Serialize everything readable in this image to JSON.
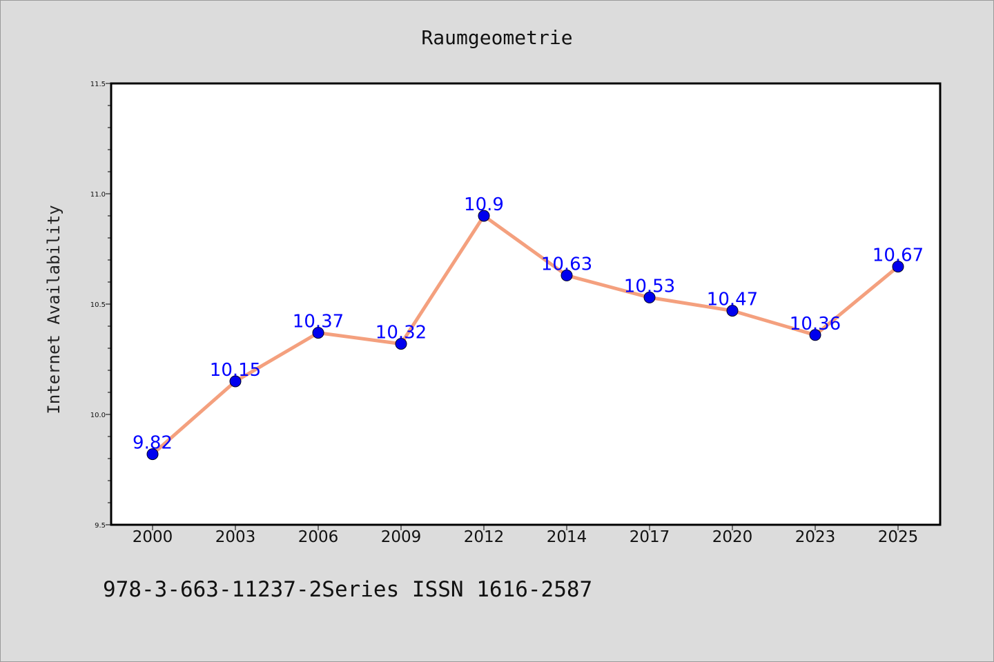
{
  "chart_data": {
    "type": "line",
    "title": "Raumgeometrie",
    "xlabel": "",
    "ylabel": "Internet Availability",
    "categories": [
      "2000",
      "2003",
      "2006",
      "2009",
      "2012",
      "2014",
      "2017",
      "2020",
      "2023",
      "2025"
    ],
    "series": [
      {
        "values": [
          9.82,
          10.15,
          10.37,
          10.32,
          10.9,
          10.63,
          10.53,
          10.47,
          10.36,
          10.67
        ],
        "data_labels": [
          "9.82",
          "10.15",
          "10.37",
          "10.32",
          "10.9",
          "10.63",
          "10.53",
          "10.47",
          "10.36",
          "10.67"
        ],
        "line_color": "#f4a07e",
        "marker_color": "#0000ee",
        "label_color": "#0000ff"
      }
    ],
    "ylim": [
      9.5,
      11.5
    ],
    "yticks": [
      {
        "value": 9.5,
        "label": "9.5"
      },
      {
        "value": 10.0,
        "label": "10.0"
      },
      {
        "value": 10.5,
        "label": "10.5"
      },
      {
        "value": 11.0,
        "label": "11.0"
      },
      {
        "value": 11.5,
        "label": "11.5"
      }
    ],
    "y_minor_step": 0.1,
    "grid": false,
    "legend": "none",
    "background_color": "#dcdcdc",
    "plot_background_color": "#ffffff"
  },
  "footer": {
    "text": "978-3-663-11237-2Series ISSN 1616-2587"
  }
}
